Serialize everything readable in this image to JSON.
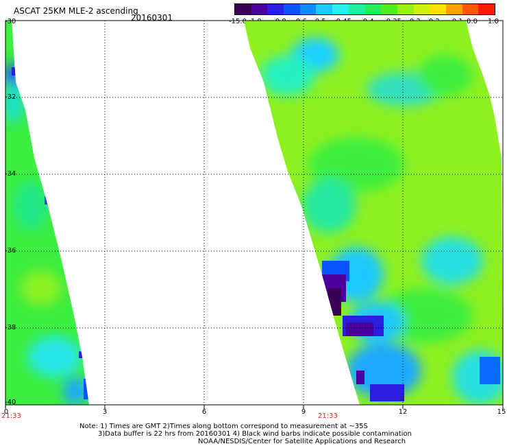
{
  "header": {
    "title": "ASCAT 25KM MLE-2 ascending",
    "date": "20160301"
  },
  "colorbar": {
    "colors": [
      "#3a0055",
      "#4b00a0",
      "#2a1fe0",
      "#0a54ff",
      "#0e8cff",
      "#1fc8ff",
      "#28f0f0",
      "#1ef0a0",
      "#22f05a",
      "#4cf020",
      "#96f018",
      "#d2f010",
      "#ffe000",
      "#ffa000",
      "#ff5a00",
      "#ff1a00"
    ],
    "labels": [
      "-15.0",
      "-1.0",
      "-0.8",
      "-0.6",
      "-0.5",
      "-0.45",
      "-0.4",
      "-0.35",
      "-0.3",
      "-0.2",
      "-0.1",
      "0.0",
      "1.0"
    ]
  },
  "axes": {
    "y_labels": [
      "-30",
      "-32",
      "-34",
      "-36",
      "-38",
      "-40"
    ],
    "x_labels": [
      "0",
      "3",
      "6",
      "9",
      "12",
      "15"
    ],
    "pass_times": [
      "21:33",
      "21:33"
    ]
  },
  "notes": [
    "Note: 1) Times are GMT 2)Times along bottom correspond to measurement at ~35S",
    "3)Data buffer is 22 hrs from 20160301 4) Black wind barbs indicate possible contamination",
    "NOAA/NESDIS/Center for Satellite Applications and Research"
  ]
}
